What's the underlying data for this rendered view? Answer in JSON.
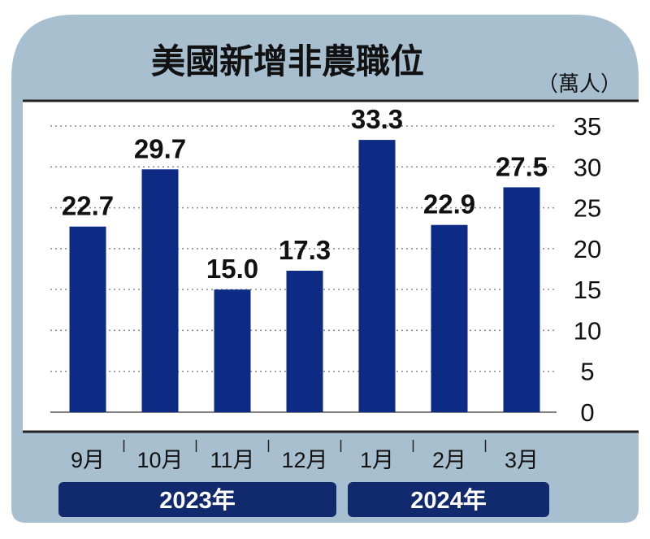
{
  "header": {
    "title": "美國新增非農職位",
    "unit": "（萬人）"
  },
  "colors": {
    "panel": "#a8bfd0",
    "bar": "#0d2a84",
    "year_band": "#112a6e",
    "grid": "#8a8a8a"
  },
  "chart_data": {
    "type": "bar",
    "title": "美國新增非農職位",
    "ylabel": "（萬人）",
    "categories": [
      "9月",
      "10月",
      "11月",
      "12月",
      "1月",
      "2月",
      "3月"
    ],
    "values": [
      22.7,
      29.7,
      15.0,
      17.3,
      33.3,
      22.9,
      27.5
    ],
    "value_labels": [
      "22.7",
      "29.7",
      "15.0",
      "17.3",
      "33.3",
      "22.9",
      "27.5"
    ],
    "ylim": [
      0,
      35
    ],
    "yticks": [
      "0",
      "5",
      "10",
      "15",
      "20",
      "25",
      "30",
      "35"
    ],
    "y_axis_side": "right",
    "grid": true,
    "groups": [
      {
        "label": "2023年",
        "categories": [
          "9月",
          "10月",
          "11月",
          "12月"
        ]
      },
      {
        "label": "2024年",
        "categories": [
          "1月",
          "2月",
          "3月"
        ]
      }
    ]
  }
}
